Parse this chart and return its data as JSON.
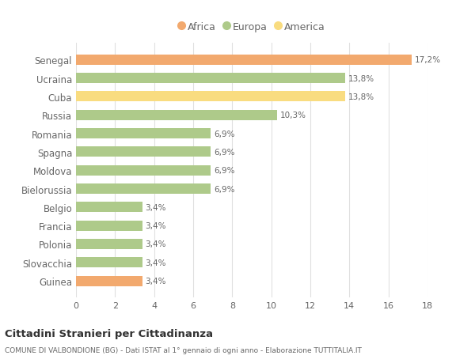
{
  "countries": [
    "Guinea",
    "Slovacchia",
    "Polonia",
    "Francia",
    "Belgio",
    "Bielorussia",
    "Moldova",
    "Spagna",
    "Romania",
    "Russia",
    "Cuba",
    "Ucraina",
    "Senegal"
  ],
  "values": [
    3.4,
    3.4,
    3.4,
    3.4,
    3.4,
    6.9,
    6.9,
    6.9,
    6.9,
    10.3,
    13.8,
    13.8,
    17.2
  ],
  "labels": [
    "3,4%",
    "3,4%",
    "3,4%",
    "3,4%",
    "3,4%",
    "6,9%",
    "6,9%",
    "6,9%",
    "6,9%",
    "10,3%",
    "13,8%",
    "13,8%",
    "17,2%"
  ],
  "bar_colors": [
    "#F2A96E",
    "#AECA8A",
    "#AECA8A",
    "#AECA8A",
    "#AECA8A",
    "#AECA8A",
    "#AECA8A",
    "#AECA8A",
    "#AECA8A",
    "#AECA8A",
    "#F9DC80",
    "#AECA8A",
    "#F2A96E"
  ],
  "legend_labels": [
    "Africa",
    "Europa",
    "America"
  ],
  "legend_colors": [
    "#F2A96E",
    "#AECA8A",
    "#F9DC80"
  ],
  "title": "Cittadini Stranieri per Cittadinanza",
  "subtitle": "COMUNE DI VALBONDIONE (BG) - Dati ISTAT al 1° gennaio di ogni anno - Elaborazione TUTTITALIA.IT",
  "xlim": [
    0,
    18
  ],
  "xticks": [
    0,
    2,
    4,
    6,
    8,
    10,
    12,
    14,
    16,
    18
  ],
  "background_color": "#FFFFFF",
  "grid_color": "#E0E0E0",
  "text_color": "#666666",
  "bar_height": 0.55
}
